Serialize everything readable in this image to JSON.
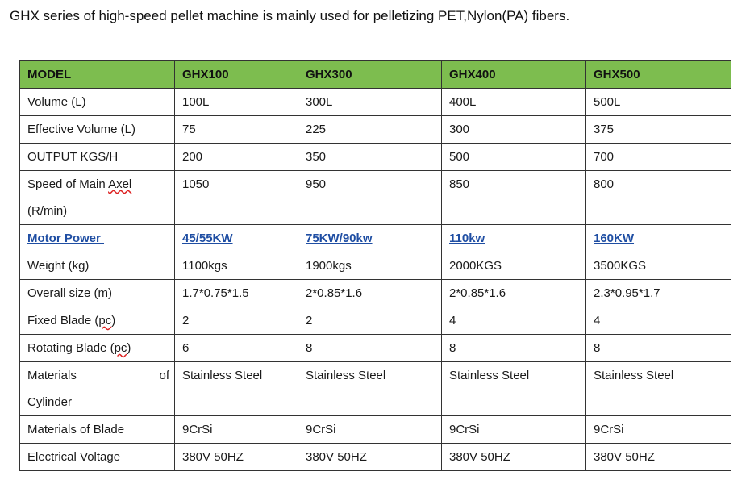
{
  "intro": "GHX series of high-speed pellet machine is mainly used for pelletizing PET,Nylon(PA) fibers.",
  "table": {
    "header": [
      "MODEL",
      "GHX100",
      "GHX300",
      "GHX400",
      "GHX500"
    ],
    "rows": [
      {
        "label": "Volume (L)",
        "values": [
          "100L",
          "300L",
          "400L",
          "500L"
        ]
      },
      {
        "label": "Effective Volume (L)",
        "values": [
          "75",
          "225",
          "300",
          "375"
        ]
      },
      {
        "label": "OUTPUT KGS/H",
        "values": [
          "200",
          "350",
          "500",
          "700"
        ]
      },
      {
        "label_line1_a": "Speed of Main ",
        "label_line1_b": "Axel",
        "label_line2": "(R/min)",
        "values": [
          "1050",
          "950",
          "850",
          "800"
        ]
      },
      {
        "label": "Motor Power ",
        "values": [
          "45/55KW",
          "75KW/90kw",
          "110kw",
          "160KW"
        ]
      },
      {
        "label": "Weight (kg)",
        "values": [
          "1100kgs",
          "1900kgs",
          "2000KGS",
          "3500KGS"
        ]
      },
      {
        "label": "Overall size (m)",
        "values": [
          "1.7*0.75*1.5",
          "2*0.85*1.6",
          "2*0.85*1.6",
          "2.3*0.95*1.7"
        ]
      },
      {
        "label_a": "Fixed Blade (",
        "label_b": "pc",
        "label_c": ")",
        "values": [
          "2",
          "2",
          "4",
          "4"
        ]
      },
      {
        "label_a": "Rotating Blade (",
        "label_b": "pc",
        "label_c": ")",
        "values": [
          "6",
          "8",
          "8",
          "8"
        ]
      },
      {
        "label_left": "Materials",
        "label_right": "of",
        "label_line2": "Cylinder",
        "values": [
          "Stainless Steel",
          "Stainless Steel",
          "Stainless Steel",
          "Stainless Steel"
        ]
      },
      {
        "label": "Materials of Blade",
        "values": [
          "9CrSi",
          "9CrSi",
          "9CrSi",
          "9CrSi"
        ]
      },
      {
        "label": "Electrical Voltage",
        "values": [
          "380V 50HZ",
          "380V 50HZ",
          "380V 50HZ",
          "380V 50HZ"
        ]
      }
    ]
  },
  "colors": {
    "header_bg": "#7dbd4f",
    "highlight_text": "#1f4ea3",
    "spell_underline": "#d22222"
  }
}
